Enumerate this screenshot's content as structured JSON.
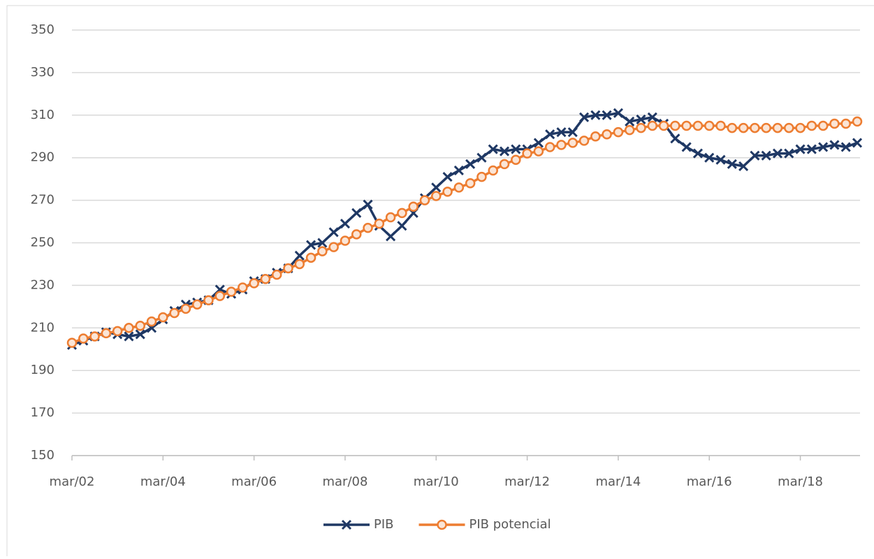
{
  "chart_data": {
    "type": "line",
    "categories": [
      "mar/02",
      null,
      null,
      null,
      null,
      null,
      null,
      null,
      "mar/04",
      null,
      null,
      null,
      null,
      null,
      null,
      null,
      "mar/06",
      null,
      null,
      null,
      null,
      null,
      null,
      null,
      "mar/08",
      null,
      null,
      null,
      null,
      null,
      null,
      null,
      "mar/10",
      null,
      null,
      null,
      null,
      null,
      null,
      null,
      "mar/12",
      null,
      null,
      null,
      null,
      null,
      null,
      null,
      "mar/14",
      null,
      null,
      null,
      null,
      null,
      null,
      null,
      "mar/16",
      null,
      null,
      null,
      null,
      null,
      null,
      null,
      "mar/18",
      null,
      null,
      null,
      null,
      null
    ],
    "series": [
      {
        "name": "PIB",
        "color": "#1f3864",
        "marker": "x",
        "values": [
          202,
          204,
          206,
          208,
          207,
          206,
          207,
          210,
          214,
          218,
          221,
          222,
          223,
          228,
          226,
          228,
          232,
          233,
          236,
          238,
          244,
          249,
          250,
          255,
          259,
          264,
          268,
          258,
          253,
          258,
          264,
          271,
          276,
          281,
          284,
          287,
          290,
          294,
          293,
          294,
          294,
          297,
          301,
          302,
          302,
          309,
          310,
          310,
          311,
          307,
          308,
          309,
          306,
          299,
          295,
          292,
          290,
          289,
          287,
          286,
          291,
          291,
          292,
          292,
          294,
          294,
          295,
          296,
          295,
          297
        ]
      },
      {
        "name": "PIB potencial",
        "color": "#ed7d31",
        "marker": "circle",
        "values": [
          203,
          205,
          206,
          207.5,
          208.5,
          210,
          211,
          213,
          215,
          217,
          219,
          221,
          223,
          225,
          227,
          229,
          231,
          233,
          235,
          238,
          240,
          243,
          246,
          248,
          251,
          254,
          257,
          259,
          262,
          264,
          267,
          270,
          272,
          274,
          276,
          278,
          281,
          284,
          287,
          289,
          292,
          293,
          295,
          296,
          297,
          298,
          300,
          301,
          302,
          303,
          304,
          305,
          305,
          305,
          305,
          305,
          305,
          305,
          304,
          304,
          304,
          304,
          304,
          304,
          304,
          305,
          305,
          306,
          306,
          307
        ]
      }
    ],
    "ylim": [
      150,
      350
    ],
    "yticks": [
      150,
      170,
      190,
      210,
      230,
      250,
      270,
      290,
      310,
      330,
      350
    ],
    "grid": true,
    "legend": "bottom"
  }
}
